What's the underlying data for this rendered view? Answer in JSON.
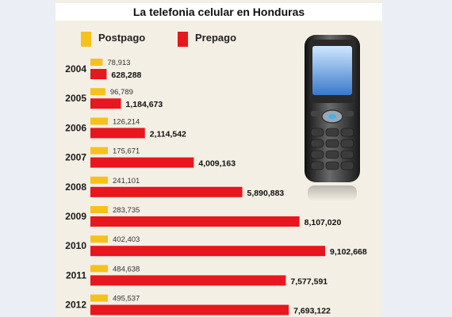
{
  "chart_data": {
    "type": "bar",
    "orientation": "horizontal",
    "title": "La telefonia celular en Honduras",
    "categories": [
      "2004",
      "2005",
      "2006",
      "2007",
      "2008",
      "2009",
      "2010",
      "2011",
      "2012"
    ],
    "series": [
      {
        "name": "Postpago",
        "color": "#f7c11c",
        "values": [
          78913,
          96789,
          126214,
          175671,
          241101,
          283735,
          402403,
          484638,
          495537
        ],
        "labels": [
          "78,913",
          "96,789",
          "126,214",
          "175,671",
          "241,101",
          "283,735",
          "402,403",
          "484,638",
          "495,537"
        ]
      },
      {
        "name": "Prepago",
        "color": "#e8161e",
        "values": [
          628288,
          1184673,
          2114542,
          4009163,
          5890883,
          8107020,
          9102668,
          7577591,
          7693122
        ],
        "labels": [
          "628,288",
          "1,184,673",
          "2,114,542",
          "4,009,163",
          "5,890,883",
          "8,107,020",
          "9,102,668",
          "7,577,591",
          "7,693,122"
        ]
      }
    ],
    "xlim": [
      0,
      9102668
    ],
    "legend": "top-left",
    "grid": false
  }
}
